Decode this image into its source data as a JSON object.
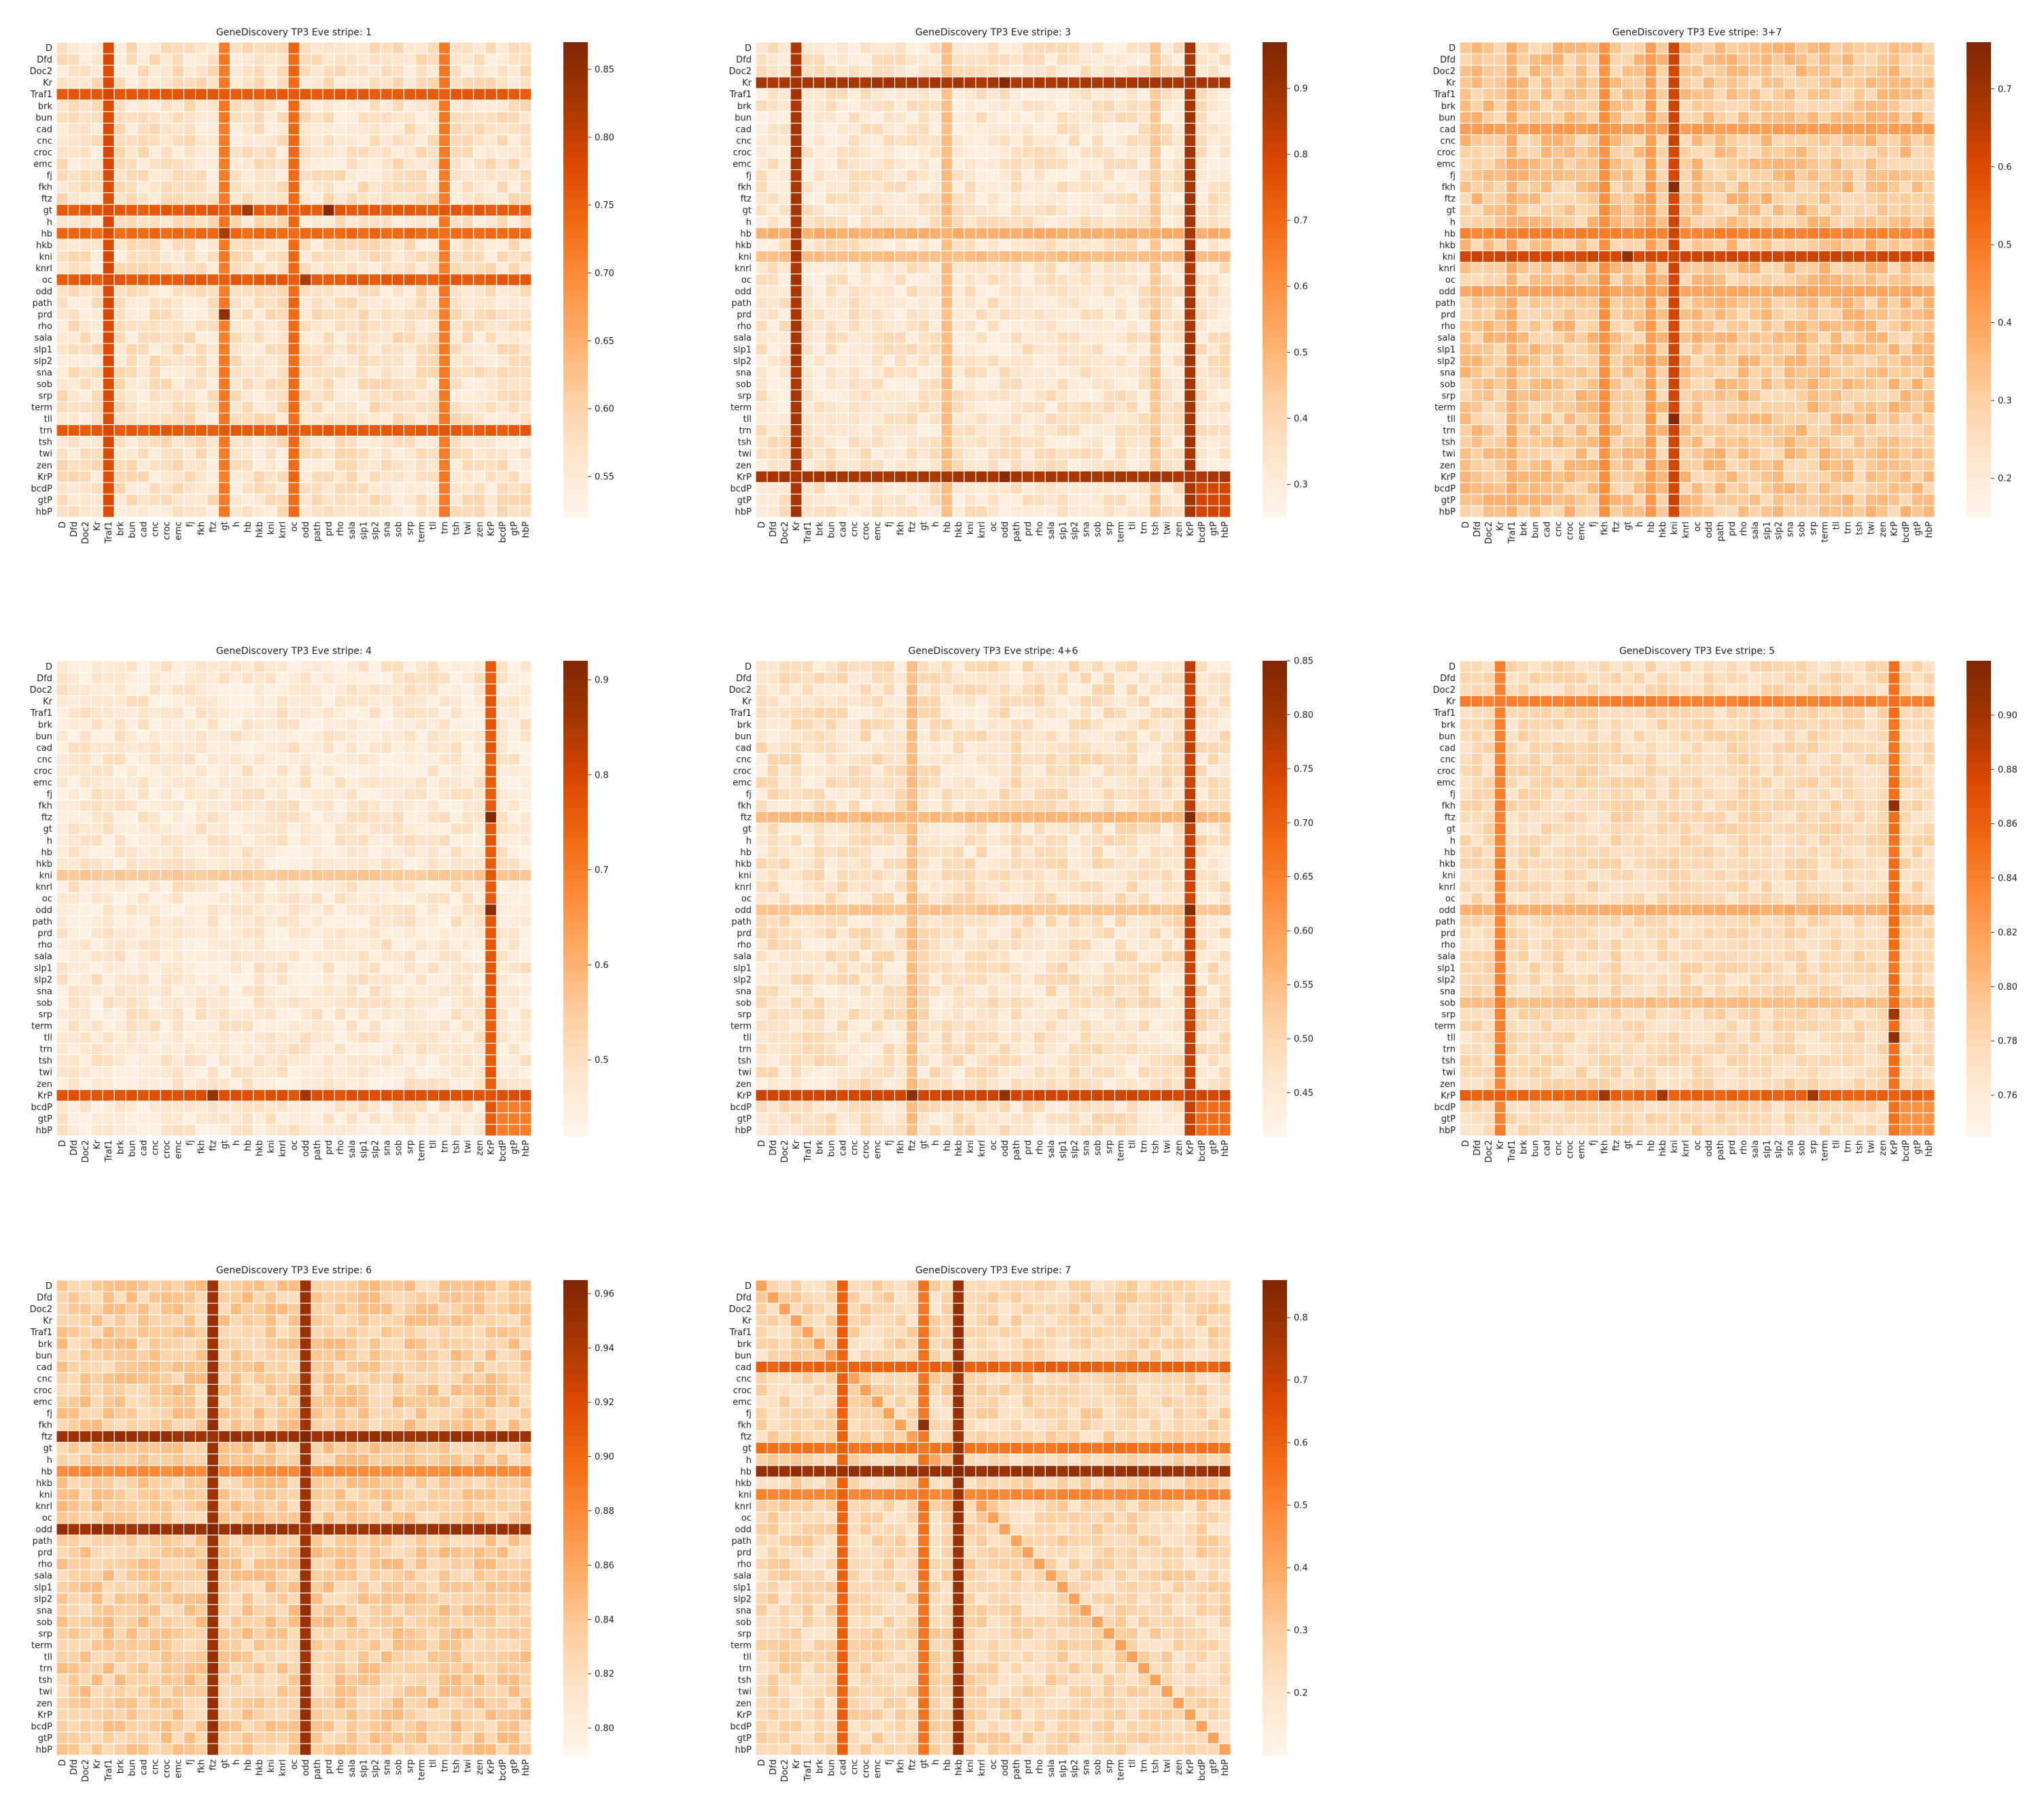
{
  "figure": {
    "genes": [
      "D",
      "Dfd",
      "Doc2",
      "Kr",
      "Traf1",
      "brk",
      "bun",
      "cad",
      "cnc",
      "croc",
      "emc",
      "fj",
      "fkh",
      "ftz",
      "gt",
      "h",
      "hb",
      "hkb",
      "kni",
      "knrl",
      "oc",
      "odd",
      "path",
      "prd",
      "rho",
      "sala",
      "slp1",
      "slp2",
      "sna",
      "sob",
      "srp",
      "term",
      "tll",
      "trn",
      "tsh",
      "twi",
      "zen",
      "KrP",
      "bcdP",
      "gtP",
      "hbP"
    ],
    "colormap": [
      "#fff5eb",
      "#fee6ce",
      "#fdd0a2",
      "#fdae6b",
      "#fd8d3c",
      "#f16913",
      "#d94801",
      "#a63603",
      "#7f2704"
    ],
    "colormap_name": "OrRd-like (light cream → dark red)",
    "cell_border_color": "#ffffff"
  },
  "chart_data": [
    {
      "type": "heatmap",
      "title": "GeneDiscovery TP3 Eve stripe: 1",
      "colorbar": {
        "min": 0.52,
        "max": 0.87,
        "ticks": [
          "0.55",
          "0.60",
          "0.65",
          "0.70",
          "0.75",
          "0.80",
          "0.85"
        ]
      },
      "base": 0.56,
      "base_jitter": 0.03,
      "hot_rows": [
        {
          "gene": "Traf1",
          "value": 0.76
        },
        {
          "gene": "gt",
          "value": 0.76
        },
        {
          "gene": "hb",
          "value": 0.74
        },
        {
          "gene": "oc",
          "value": 0.76
        },
        {
          "gene": "trn",
          "value": 0.76
        }
      ],
      "hot_cols": [
        {
          "gene": "Traf1",
          "value": 0.78
        },
        {
          "gene": "gt",
          "value": 0.72
        },
        {
          "gene": "oc",
          "value": 0.74
        },
        {
          "gene": "trn",
          "value": 0.72
        }
      ],
      "diagonal": 0.58,
      "peaks": [
        {
          "row": "gt",
          "col": "prd",
          "value": 0.86
        },
        {
          "row": "prd",
          "col": "gt",
          "value": 0.85
        },
        {
          "row": "hb",
          "col": "gt",
          "value": 0.82
        },
        {
          "row": "gt",
          "col": "hb",
          "value": 0.83
        },
        {
          "row": "oc",
          "col": "odd",
          "value": 0.82
        }
      ]
    },
    {
      "type": "heatmap",
      "title": "GeneDiscovery TP3 Eve stripe: 3",
      "colorbar": {
        "min": 0.25,
        "max": 0.97,
        "ticks": [
          "0.3",
          "0.4",
          "0.5",
          "0.6",
          "0.7",
          "0.8",
          "0.9"
        ]
      },
      "base": 0.32,
      "base_jitter": 0.06,
      "hot_rows": [
        {
          "gene": "Kr",
          "value": 0.88
        },
        {
          "gene": "KrP",
          "value": 0.88
        },
        {
          "gene": "hb",
          "value": 0.52
        },
        {
          "gene": "kni",
          "value": 0.48
        }
      ],
      "hot_cols": [
        {
          "gene": "Kr",
          "value": 0.88
        },
        {
          "gene": "KrP",
          "value": 0.88
        },
        {
          "gene": "hb",
          "value": 0.48
        },
        {
          "gene": "tsh",
          "value": 0.45
        }
      ],
      "diagonal": 0.34,
      "block": {
        "genes": [
          "KrP",
          "bcdP",
          "gtP",
          "hbP"
        ],
        "value": 0.8
      },
      "peaks": [
        {
          "row": "Kr",
          "col": "odd",
          "value": 0.96
        },
        {
          "row": "KrP",
          "col": "odd",
          "value": 0.95
        }
      ]
    },
    {
      "type": "heatmap",
      "title": "GeneDiscovery TP3 Eve stripe: 3+7",
      "colorbar": {
        "min": 0.15,
        "max": 0.76,
        "ticks": [
          "0.2",
          "0.3",
          "0.4",
          "0.5",
          "0.6",
          "0.7"
        ]
      },
      "base": 0.3,
      "base_jitter": 0.06,
      "hot_rows": [
        {
          "gene": "kni",
          "value": 0.62
        },
        {
          "gene": "hb",
          "value": 0.48
        },
        {
          "gene": "cad",
          "value": 0.42
        },
        {
          "gene": "odd",
          "value": 0.4
        }
      ],
      "hot_cols": [
        {
          "gene": "kni",
          "value": 0.62
        },
        {
          "gene": "fkh",
          "value": 0.45
        },
        {
          "gene": "hb",
          "value": 0.42
        },
        {
          "gene": "Traf1",
          "value": 0.38
        }
      ],
      "diagonal": 0.32,
      "peaks": [
        {
          "row": "tll",
          "col": "kni",
          "value": 0.75
        },
        {
          "row": "fkh",
          "col": "kni",
          "value": 0.74
        },
        {
          "row": "kni",
          "col": "gt",
          "value": 0.72
        }
      ]
    },
    {
      "type": "heatmap",
      "title": "GeneDiscovery TP3 Eve stripe: 4",
      "colorbar": {
        "min": 0.42,
        "max": 0.92,
        "ticks": [
          "0.5",
          "0.6",
          "0.7",
          "0.8",
          "0.9"
        ]
      },
      "base": 0.46,
      "base_jitter": 0.04,
      "hot_rows": [
        {
          "gene": "KrP",
          "value": 0.78
        },
        {
          "gene": "kni",
          "value": 0.56
        }
      ],
      "hot_cols": [
        {
          "gene": "KrP",
          "value": 0.76
        }
      ],
      "diagonal": 0.48,
      "block": {
        "genes": [
          "KrP",
          "bcdP",
          "gtP",
          "hbP"
        ],
        "value": 0.7
      },
      "peaks": [
        {
          "row": "ftz",
          "col": "KrP",
          "value": 0.91
        },
        {
          "row": "odd",
          "col": "KrP",
          "value": 0.9
        },
        {
          "row": "KrP",
          "col": "ftz",
          "value": 0.88
        },
        {
          "row": "KrP",
          "col": "odd",
          "value": 0.86
        }
      ]
    },
    {
      "type": "heatmap",
      "title": "GeneDiscovery TP3 Eve stripe: 4+6",
      "colorbar": {
        "min": 0.41,
        "max": 0.85,
        "ticks": [
          "0.45",
          "0.50",
          "0.55",
          "0.60",
          "0.65",
          "0.70",
          "0.75",
          "0.80",
          "0.85"
        ]
      },
      "base": 0.46,
      "base_jitter": 0.04,
      "hot_rows": [
        {
          "gene": "KrP",
          "value": 0.75
        },
        {
          "gene": "ftz",
          "value": 0.56
        },
        {
          "gene": "odd",
          "value": 0.54
        }
      ],
      "hot_cols": [
        {
          "gene": "KrP",
          "value": 0.76
        },
        {
          "gene": "ftz",
          "value": 0.55
        }
      ],
      "diagonal": 0.47,
      "block": {
        "genes": [
          "KrP",
          "bcdP",
          "gtP",
          "hbP"
        ],
        "value": 0.68
      },
      "peaks": [
        {
          "row": "ftz",
          "col": "KrP",
          "value": 0.84
        },
        {
          "row": "odd",
          "col": "KrP",
          "value": 0.84
        },
        {
          "row": "KrP",
          "col": "ftz",
          "value": 0.82
        },
        {
          "row": "KrP",
          "col": "odd",
          "value": 0.82
        }
      ]
    },
    {
      "type": "heatmap",
      "title": "GeneDiscovery TP3 Eve stripe: 5",
      "colorbar": {
        "min": 0.745,
        "max": 0.92,
        "ticks": [
          "0.76",
          "0.78",
          "0.80",
          "0.82",
          "0.84",
          "0.86",
          "0.88",
          "0.90"
        ]
      },
      "base": 0.775,
      "base_jitter": 0.012,
      "hot_rows": [
        {
          "gene": "Kr",
          "value": 0.84
        },
        {
          "gene": "KrP",
          "value": 0.86
        },
        {
          "gene": "odd",
          "value": 0.81
        },
        {
          "gene": "sob",
          "value": 0.8
        }
      ],
      "hot_cols": [
        {
          "gene": "Kr",
          "value": 0.84
        },
        {
          "gene": "KrP",
          "value": 0.85
        }
      ],
      "diagonal": 0.78,
      "block": {
        "genes": [
          "KrP",
          "bcdP",
          "gtP",
          "hbP"
        ],
        "value": 0.83
      },
      "peaks": [
        {
          "row": "fkh",
          "col": "KrP",
          "value": 0.91
        },
        {
          "row": "tll",
          "col": "KrP",
          "value": 0.91
        },
        {
          "row": "srp",
          "col": "KrP",
          "value": 0.9
        },
        {
          "row": "KrP",
          "col": "fkh",
          "value": 0.9
        },
        {
          "row": "KrP",
          "col": "hkb",
          "value": 0.9
        },
        {
          "row": "KrP",
          "col": "srp",
          "value": 0.9
        }
      ]
    },
    {
      "type": "heatmap",
      "title": "GeneDiscovery TP3 Eve stripe: 6",
      "colorbar": {
        "min": 0.79,
        "max": 0.965,
        "ticks": [
          "0.80",
          "0.82",
          "0.84",
          "0.86",
          "0.88",
          "0.90",
          "0.92",
          "0.94",
          "0.96"
        ]
      },
      "base": 0.83,
      "base_jitter": 0.015,
      "hot_rows": [
        {
          "gene": "ftz",
          "value": 0.95
        },
        {
          "gene": "odd",
          "value": 0.95
        },
        {
          "gene": "hb",
          "value": 0.88
        }
      ],
      "hot_cols": [
        {
          "gene": "ftz",
          "value": 0.95
        },
        {
          "gene": "odd",
          "value": 0.95
        }
      ],
      "diagonal": 0.84,
      "peaks": [
        {
          "row": "ftz",
          "col": "odd",
          "value": 0.965
        },
        {
          "row": "odd",
          "col": "ftz",
          "value": 0.965
        }
      ]
    },
    {
      "type": "heatmap",
      "title": "GeneDiscovery TP3 Eve stripe: 7",
      "colorbar": {
        "min": 0.1,
        "max": 0.86,
        "ticks": [
          "0.2",
          "0.3",
          "0.4",
          "0.5",
          "0.6",
          "0.7",
          "0.8"
        ]
      },
      "base": 0.24,
      "base_jitter": 0.06,
      "hot_rows": [
        {
          "gene": "hb",
          "value": 0.8
        },
        {
          "gene": "cad",
          "value": 0.6
        },
        {
          "gene": "gt",
          "value": 0.55
        },
        {
          "gene": "kni",
          "value": 0.5
        }
      ],
      "hot_cols": [
        {
          "gene": "hkb",
          "value": 0.8
        },
        {
          "gene": "cad",
          "value": 0.6
        },
        {
          "gene": "gt",
          "value": 0.55
        }
      ],
      "diagonal": 0.42,
      "peaks": [
        {
          "row": "hb",
          "col": "hkb",
          "value": 0.86
        },
        {
          "row": "fkh",
          "col": "gt",
          "value": 0.82
        }
      ]
    }
  ]
}
